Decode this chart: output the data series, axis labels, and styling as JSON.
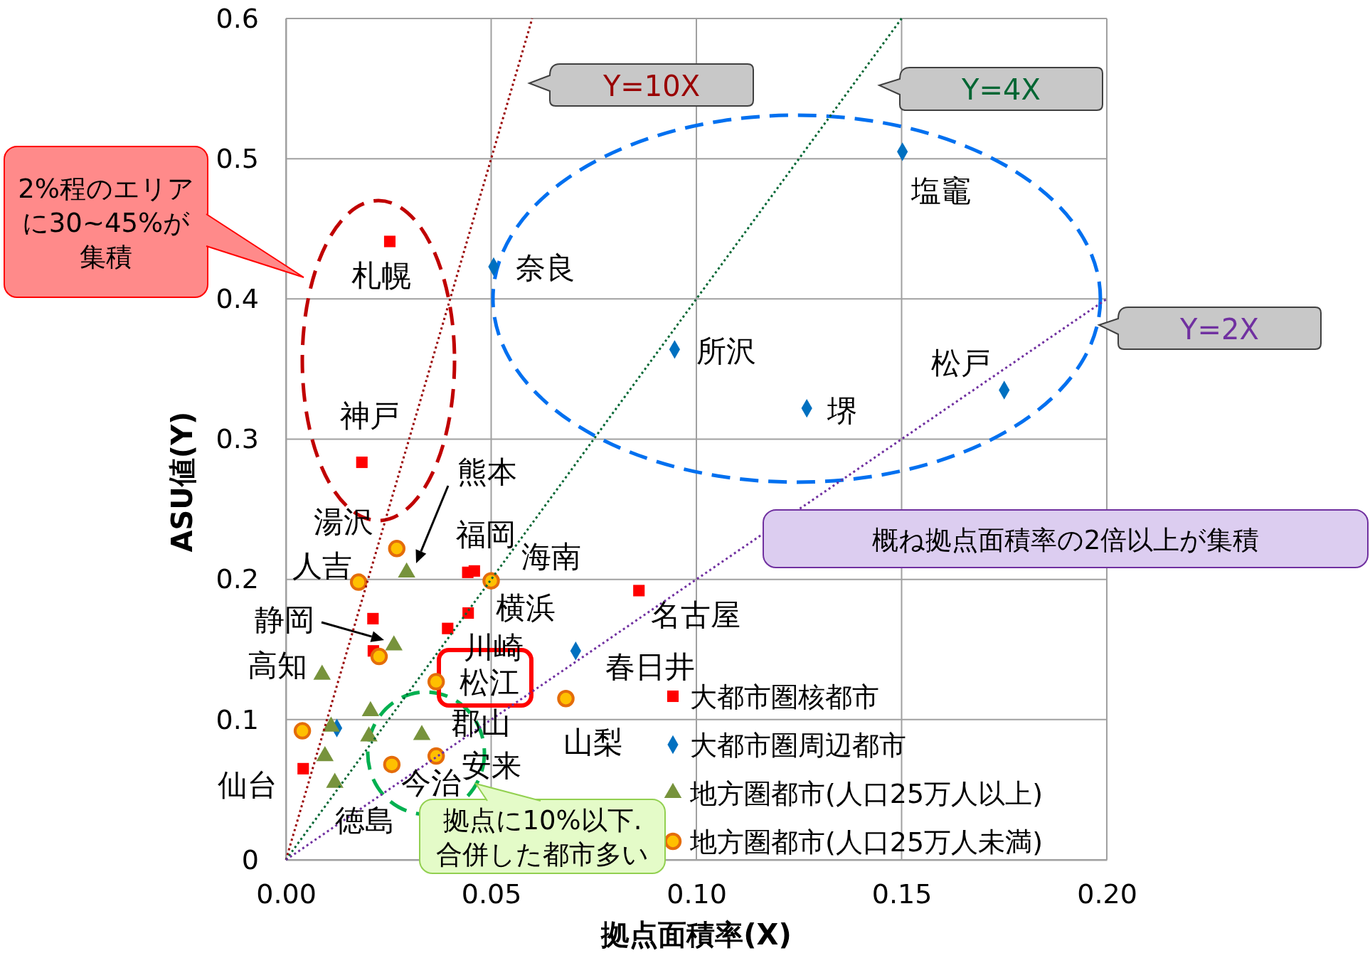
{
  "chart_data": {
    "type": "scatter",
    "xlabel": "拠点面積率(X)",
    "ylabel": "ASU値(Y)",
    "xlim": [
      0,
      0.2
    ],
    "xticks": [
      {
        "value": 0,
        "label": "0.00"
      },
      {
        "value": 0.05,
        "label": "0.05"
      },
      {
        "value": 0.1,
        "label": "0.10"
      },
      {
        "value": 0.15,
        "label": "0.15"
      },
      {
        "value": 0.2,
        "label": "0.20"
      }
    ],
    "ylim": [
      0,
      0.6
    ],
    "yticks": [
      0,
      0.1,
      0.2,
      0.3,
      0.4,
      0.5,
      0.6
    ],
    "grid": true,
    "legend": "bottom right",
    "series": [
      {
        "name": "大都市圏核都市",
        "color": "#ff0000",
        "marker": "square",
        "x": [
          0.0253,
          0.0185,
          0.0212,
          0.0213,
          0.0042,
          0.0443,
          0.0459,
          0.0444,
          0.0394,
          0.086
        ],
        "values": [
          0.441,
          0.2835,
          0.172,
          0.149,
          0.065,
          0.205,
          0.206,
          0.176,
          0.165,
          0.192
        ]
      },
      {
        "name": "大都市圏周辺都市",
        "color": "#0070c0",
        "marker": "diamond",
        "x": [
          0.0506,
          0.1502,
          0.0947,
          0.1269,
          0.175,
          0.0706,
          0.0124
        ],
        "values": [
          0.423,
          0.505,
          0.364,
          0.322,
          0.335,
          0.149,
          0.094
        ]
      },
      {
        "name": "地方圏都市(人口25万人以上)",
        "color": "#77933c",
        "marker": "triangle",
        "x": [
          0.0294,
          0.0263,
          0.0088,
          0.0206,
          0.011,
          0.0202,
          0.0331,
          0.0095,
          0.0119
        ],
        "values": [
          0.205,
          0.153,
          0.132,
          0.106,
          0.095,
          0.088,
          0.089,
          0.074,
          0.055
        ]
      },
      {
        "name": "地方圏都市(人口25万人未満)",
        "color": "#ffc000",
        "marker": "circle",
        "x": [
          0.027,
          0.0177,
          0.05,
          0.0227,
          0.0366,
          0.004,
          0.0258,
          0.0366,
          0.0682
        ],
        "values": [
          0.222,
          0.198,
          0.199,
          0.145,
          0.127,
          0.092,
          0.068,
          0.074,
          0.115
        ]
      },
      {
        "name": "Y=10X",
        "type": "line",
        "color": "#990000",
        "line_style": "dotted",
        "x": [
          0,
          0.06
        ],
        "values": [
          0,
          0.6
        ]
      },
      {
        "name": "Y=4X",
        "type": "line",
        "color": "#006633",
        "line_style": "dotted",
        "x": [
          0,
          0.15
        ],
        "values": [
          0,
          0.6
        ]
      },
      {
        "name": "Y=2X",
        "type": "line",
        "color": "#7030a0",
        "line_style": "dotted",
        "x": [
          0,
          0.2
        ],
        "values": [
          0,
          0.4
        ]
      }
    ],
    "annotations": [
      "札幌",
      "神戸",
      "湯沢",
      "人吉",
      "熊本",
      "福岡",
      "海南",
      "静岡",
      "横浜",
      "高知",
      "川崎",
      "松江",
      "郡山",
      "安来",
      "仙台",
      "今治",
      "徳島",
      "山梨",
      "名古屋",
      "春日井",
      "奈良",
      "塩竈",
      "所沢",
      "堺",
      "松戸",
      "2%程のエリアに30~45%が集積",
      "概ね拠点面積率の2倍以上が集積",
      "拠点に10%以下.合併した都市多い"
    ]
  }
}
